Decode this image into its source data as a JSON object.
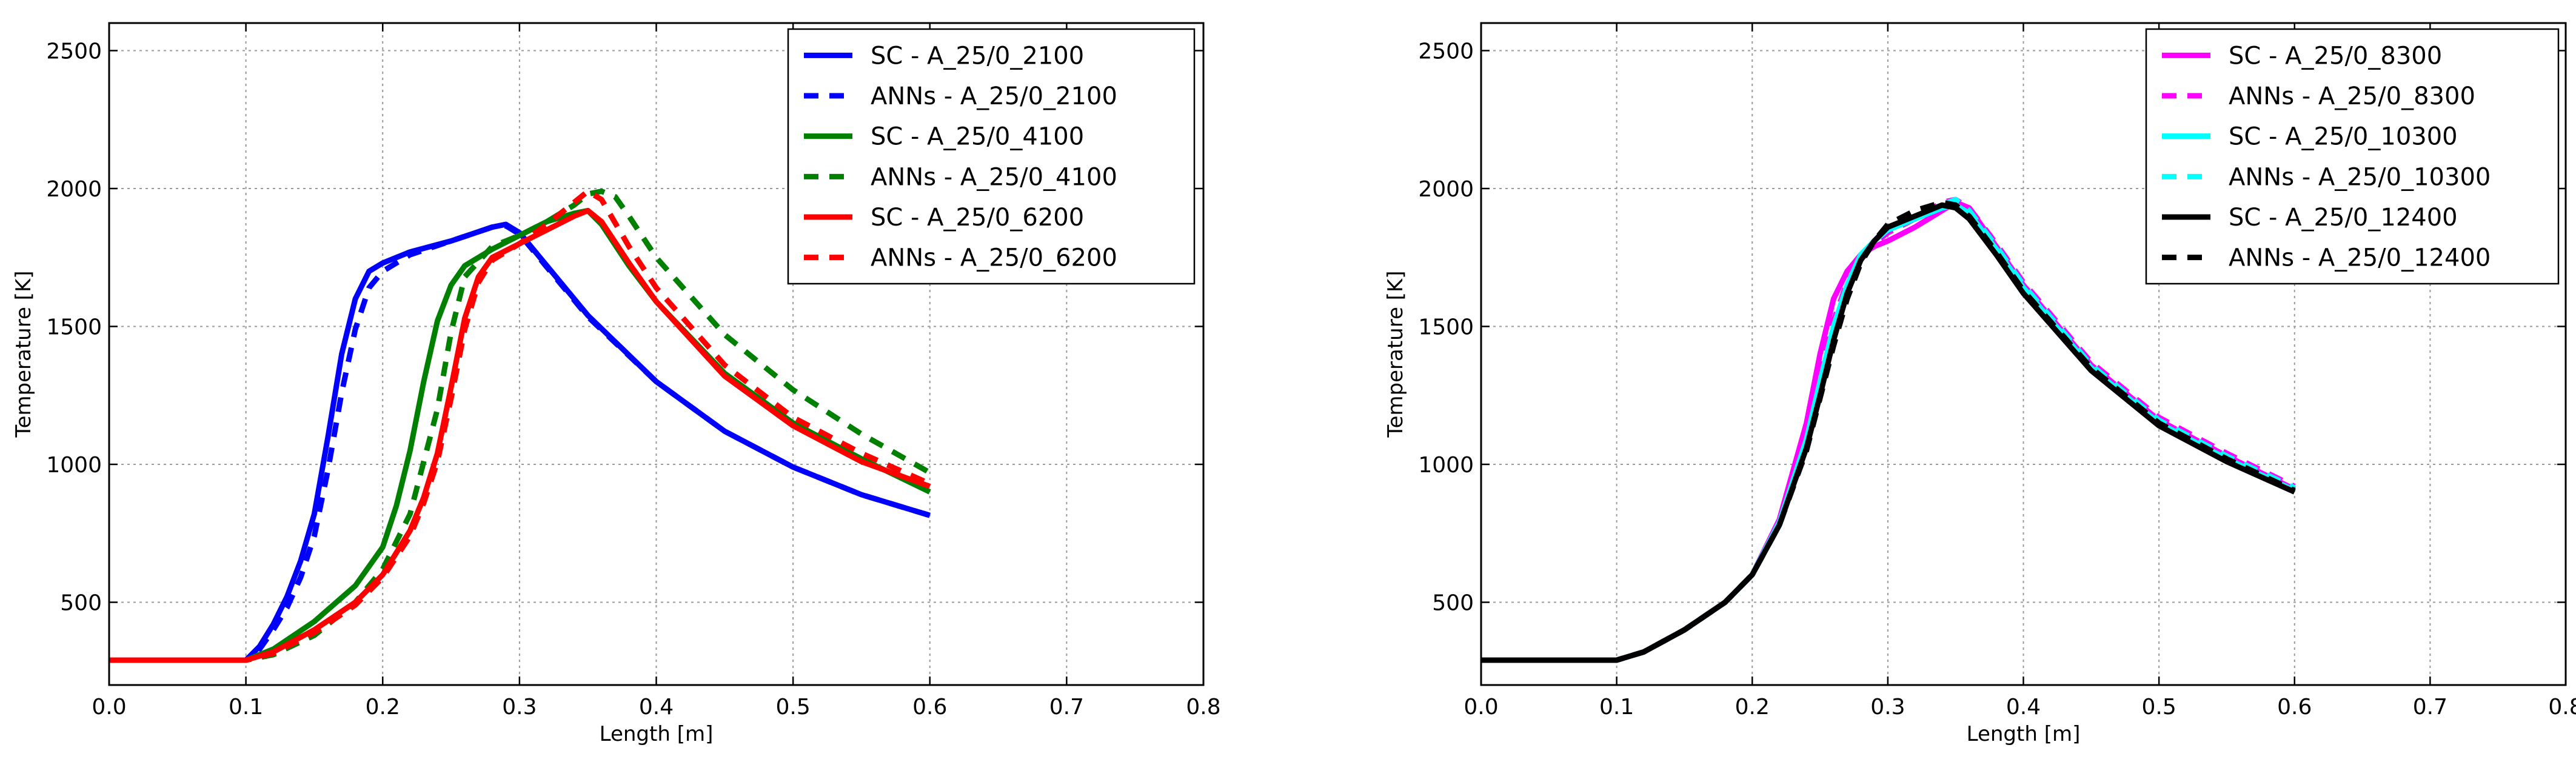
{
  "chart_data": [
    {
      "type": "line",
      "xlabel": "Length [m]",
      "ylabel": "Temperature [K]",
      "xlim": [
        0.0,
        0.8
      ],
      "ylim": [
        200,
        2600
      ],
      "xticks": [
        "0.0",
        "0.1",
        "0.2",
        "0.3",
        "0.4",
        "0.5",
        "0.6",
        "0.7",
        "0.8"
      ],
      "yticks": [
        "500",
        "1000",
        "1500",
        "2000",
        "2500"
      ],
      "grid": true,
      "legend_position": "top-right",
      "series": [
        {
          "name": "SC - A_25/0_2100",
          "color": "#0000ff",
          "dash": false,
          "x": [
            0,
            0.1,
            0.11,
            0.12,
            0.13,
            0.14,
            0.15,
            0.16,
            0.17,
            0.18,
            0.19,
            0.2,
            0.22,
            0.25,
            0.28,
            0.29,
            0.3,
            0.32,
            0.35,
            0.4,
            0.45,
            0.5,
            0.55,
            0.6
          ],
          "y": [
            290,
            290,
            340,
            420,
            520,
            650,
            820,
            1100,
            1400,
            1600,
            1700,
            1730,
            1770,
            1810,
            1860,
            1870,
            1840,
            1720,
            1540,
            1300,
            1120,
            990,
            890,
            815
          ]
        },
        {
          "name": "ANNs - A_25/0_2100",
          "color": "#0000ff",
          "dash": true,
          "x": [
            0,
            0.1,
            0.11,
            0.12,
            0.13,
            0.14,
            0.15,
            0.16,
            0.17,
            0.18,
            0.19,
            0.2,
            0.22,
            0.25,
            0.28,
            0.29,
            0.3,
            0.32,
            0.35,
            0.4,
            0.45,
            0.5,
            0.55,
            0.6
          ],
          "y": [
            290,
            290,
            330,
            400,
            480,
            590,
            740,
            980,
            1260,
            1490,
            1640,
            1700,
            1760,
            1810,
            1860,
            1865,
            1835,
            1715,
            1535,
            1300,
            1120,
            990,
            890,
            815
          ]
        },
        {
          "name": "SC - A_25/0_4100",
          "color": "#008000",
          "dash": false,
          "x": [
            0,
            0.1,
            0.12,
            0.15,
            0.18,
            0.2,
            0.21,
            0.22,
            0.23,
            0.24,
            0.25,
            0.26,
            0.28,
            0.3,
            0.32,
            0.34,
            0.35,
            0.36,
            0.38,
            0.4,
            0.45,
            0.5,
            0.55,
            0.6
          ],
          "y": [
            290,
            290,
            330,
            430,
            560,
            700,
            850,
            1050,
            1300,
            1520,
            1650,
            1720,
            1780,
            1830,
            1880,
            1910,
            1920,
            1870,
            1720,
            1590,
            1330,
            1150,
            1020,
            900
          ]
        },
        {
          "name": "ANNs - A_25/0_4100",
          "color": "#008000",
          "dash": true,
          "x": [
            0,
            0.1,
            0.12,
            0.15,
            0.18,
            0.2,
            0.22,
            0.24,
            0.25,
            0.26,
            0.28,
            0.3,
            0.32,
            0.34,
            0.35,
            0.36,
            0.37,
            0.38,
            0.4,
            0.45,
            0.5,
            0.55,
            0.6
          ],
          "y": [
            290,
            290,
            310,
            380,
            500,
            620,
            820,
            1200,
            1480,
            1680,
            1790,
            1830,
            1880,
            1940,
            1980,
            1990,
            1970,
            1900,
            1750,
            1470,
            1270,
            1110,
            970
          ]
        },
        {
          "name": "SC - A_25/0_6200",
          "color": "#ff0000",
          "dash": false,
          "x": [
            0,
            0.1,
            0.12,
            0.15,
            0.18,
            0.2,
            0.22,
            0.23,
            0.24,
            0.25,
            0.26,
            0.27,
            0.28,
            0.3,
            0.32,
            0.34,
            0.35,
            0.36,
            0.38,
            0.4,
            0.45,
            0.5,
            0.55,
            0.6
          ],
          "y": [
            290,
            290,
            320,
            400,
            500,
            600,
            760,
            880,
            1040,
            1280,
            1530,
            1680,
            1750,
            1800,
            1850,
            1900,
            1920,
            1880,
            1730,
            1590,
            1320,
            1140,
            1010,
            920
          ]
        },
        {
          "name": "ANNs - A_25/0_6200",
          "color": "#ff0000",
          "dash": true,
          "x": [
            0,
            0.1,
            0.12,
            0.15,
            0.18,
            0.2,
            0.22,
            0.23,
            0.24,
            0.25,
            0.26,
            0.27,
            0.28,
            0.3,
            0.32,
            0.34,
            0.35,
            0.36,
            0.38,
            0.4,
            0.45,
            0.5,
            0.55,
            0.6
          ],
          "y": [
            290,
            290,
            315,
            390,
            490,
            590,
            740,
            860,
            1010,
            1240,
            1490,
            1660,
            1740,
            1800,
            1870,
            1950,
            1990,
            1960,
            1790,
            1640,
            1360,
            1170,
            1040,
            930
          ]
        }
      ]
    },
    {
      "type": "line",
      "xlabel": "Length [m]",
      "ylabel": "Temperature [K]",
      "xlim": [
        0.0,
        0.8
      ],
      "ylim": [
        200,
        2600
      ],
      "xticks": [
        "0.0",
        "0.1",
        "0.2",
        "0.3",
        "0.4",
        "0.5",
        "0.6",
        "0.7",
        "0.8"
      ],
      "yticks": [
        "500",
        "1000",
        "1500",
        "2000",
        "2500"
      ],
      "grid": true,
      "legend_position": "top-right",
      "series": [
        {
          "name": "SC - A_25/0_8300",
          "color": "#ff00ff",
          "dash": false,
          "x": [
            0,
            0.1,
            0.12,
            0.15,
            0.18,
            0.2,
            0.22,
            0.24,
            0.25,
            0.26,
            0.27,
            0.28,
            0.29,
            0.3,
            0.32,
            0.34,
            0.35,
            0.36,
            0.38,
            0.4,
            0.45,
            0.5,
            0.55,
            0.6
          ],
          "y": [
            290,
            290,
            320,
            400,
            500,
            600,
            800,
            1150,
            1400,
            1600,
            1700,
            1760,
            1790,
            1810,
            1860,
            1920,
            1950,
            1930,
            1790,
            1650,
            1360,
            1160,
            1030,
            910
          ]
        },
        {
          "name": "ANNs - A_25/0_8300",
          "color": "#ff00ff",
          "dash": true,
          "x": [
            0,
            0.1,
            0.12,
            0.15,
            0.18,
            0.2,
            0.22,
            0.24,
            0.25,
            0.26,
            0.27,
            0.28,
            0.29,
            0.3,
            0.32,
            0.34,
            0.35,
            0.36,
            0.38,
            0.4,
            0.45,
            0.5,
            0.55,
            0.6
          ],
          "y": [
            290,
            290,
            320,
            400,
            500,
            600,
            790,
            1100,
            1320,
            1520,
            1660,
            1740,
            1800,
            1840,
            1890,
            1950,
            1960,
            1930,
            1800,
            1660,
            1370,
            1170,
            1040,
            920
          ]
        },
        {
          "name": "SC - A_25/0_10300",
          "color": "#00ffff",
          "dash": false,
          "x": [
            0,
            0.1,
            0.12,
            0.15,
            0.18,
            0.2,
            0.22,
            0.24,
            0.25,
            0.26,
            0.27,
            0.28,
            0.29,
            0.3,
            0.32,
            0.34,
            0.35,
            0.36,
            0.38,
            0.4,
            0.45,
            0.5,
            0.55,
            0.6
          ],
          "y": [
            290,
            290,
            320,
            400,
            500,
            600,
            790,
            1090,
            1300,
            1500,
            1650,
            1760,
            1810,
            1850,
            1890,
            1930,
            1940,
            1910,
            1780,
            1640,
            1350,
            1150,
            1020,
            905
          ]
        },
        {
          "name": "ANNs - A_25/0_10300",
          "color": "#00ffff",
          "dash": true,
          "x": [
            0,
            0.1,
            0.12,
            0.15,
            0.18,
            0.2,
            0.22,
            0.24,
            0.25,
            0.26,
            0.27,
            0.28,
            0.29,
            0.3,
            0.32,
            0.34,
            0.35,
            0.36,
            0.38,
            0.4,
            0.45,
            0.5,
            0.55,
            0.6
          ],
          "y": [
            290,
            290,
            320,
            400,
            500,
            600,
            780,
            1070,
            1270,
            1470,
            1630,
            1750,
            1810,
            1860,
            1900,
            1940,
            1960,
            1920,
            1790,
            1650,
            1360,
            1160,
            1030,
            915
          ]
        },
        {
          "name": "SC - A_25/0_12400",
          "color": "#000000",
          "dash": false,
          "x": [
            0,
            0.1,
            0.12,
            0.15,
            0.18,
            0.2,
            0.22,
            0.24,
            0.25,
            0.26,
            0.27,
            0.28,
            0.29,
            0.3,
            0.32,
            0.34,
            0.35,
            0.36,
            0.38,
            0.4,
            0.45,
            0.5,
            0.55,
            0.6
          ],
          "y": [
            290,
            290,
            320,
            400,
            500,
            600,
            780,
            1060,
            1250,
            1450,
            1620,
            1740,
            1810,
            1860,
            1900,
            1940,
            1930,
            1890,
            1760,
            1620,
            1340,
            1140,
            1010,
            900
          ]
        },
        {
          "name": "ANNs - A_25/0_12400",
          "color": "#000000",
          "dash": true,
          "x": [
            0,
            0.1,
            0.12,
            0.15,
            0.18,
            0.2,
            0.22,
            0.24,
            0.25,
            0.26,
            0.27,
            0.28,
            0.29,
            0.3,
            0.32,
            0.34,
            0.35,
            0.36,
            0.38,
            0.4,
            0.45,
            0.5,
            0.55,
            0.6
          ],
          "y": [
            290,
            290,
            320,
            400,
            500,
            600,
            780,
            1050,
            1240,
            1430,
            1600,
            1730,
            1810,
            1870,
            1920,
            1950,
            1940,
            1900,
            1770,
            1630,
            1350,
            1150,
            1020,
            905
          ]
        }
      ]
    }
  ]
}
